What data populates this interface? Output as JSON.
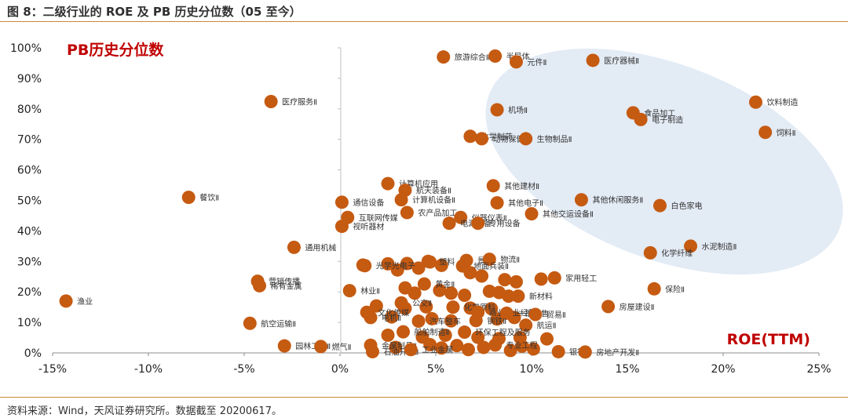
{
  "figure_title": "图 8：二级行业的 ROE 及 PB 历史分位数（05 至今）",
  "source_note": "资料来源：Wind，天风证券研究所。数据截至 20200617。",
  "colors": {
    "point": "#c55a11",
    "ellipse": "#dce6f2",
    "accent_text": "#c00000",
    "rule": "#c9883c"
  },
  "chart_data": {
    "type": "scatter",
    "title": "",
    "ylabel": "PB历史分位数",
    "xlabel": "ROE(TTM)",
    "xlim": [
      -0.15,
      0.25
    ],
    "ylim": [
      0,
      1.0
    ],
    "x_ticks": [
      "-15%",
      "-10%",
      "-5%",
      "0%",
      "5%",
      "10%",
      "15%",
      "20%",
      "25%"
    ],
    "y_ticks": [
      "0%",
      "10%",
      "20%",
      "30%",
      "40%",
      "50%",
      "60%",
      "70%",
      "80%",
      "90%",
      "100%"
    ],
    "grid": false,
    "points": [
      {
        "name": "旅游综合Ⅱ",
        "x": 0.054,
        "y": 0.97
      },
      {
        "name": "半导体",
        "x": 0.081,
        "y": 0.973
      },
      {
        "name": "元件Ⅱ",
        "x": 0.092,
        "y": 0.954
      },
      {
        "name": "医疗器械Ⅱ",
        "x": 0.132,
        "y": 0.959
      },
      {
        "name": "医疗服务Ⅱ",
        "x": -0.036,
        "y": 0.824
      },
      {
        "name": "机场Ⅱ",
        "x": 0.082,
        "y": 0.797
      },
      {
        "name": "饮料制造",
        "x": 0.217,
        "y": 0.822
      },
      {
        "name": "食品加工",
        "x": 0.153,
        "y": 0.787
      },
      {
        "name": "电子制造",
        "x": 0.157,
        "y": 0.765
      },
      {
        "name": "饲料Ⅱ",
        "x": 0.222,
        "y": 0.723
      },
      {
        "name": "化学制药",
        "x": 0.068,
        "y": 0.71
      },
      {
        "name": "动物保健Ⅱ",
        "x": 0.074,
        "y": 0.702
      },
      {
        "name": "生物制品Ⅱ",
        "x": 0.097,
        "y": 0.702
      },
      {
        "name": "计算机应用",
        "x": 0.025,
        "y": 0.555
      },
      {
        "name": "航天装备Ⅱ",
        "x": 0.034,
        "y": 0.533
      },
      {
        "name": "其他建材Ⅱ",
        "x": 0.08,
        "y": 0.548
      },
      {
        "name": "餐饮Ⅱ",
        "x": -0.079,
        "y": 0.51
      },
      {
        "name": "通信设备",
        "x": 0.001,
        "y": 0.494
      },
      {
        "name": "计算机设备Ⅱ",
        "x": 0.032,
        "y": 0.502
      },
      {
        "name": "其他电子Ⅱ",
        "x": 0.082,
        "y": 0.492
      },
      {
        "name": "其他休闲服务Ⅱ",
        "x": 0.126,
        "y": 0.502
      },
      {
        "name": "白色家电",
        "x": 0.167,
        "y": 0.483
      },
      {
        "name": "互联网传媒",
        "x": 0.004,
        "y": 0.444
      },
      {
        "name": "农产品加工",
        "x": 0.035,
        "y": 0.46
      },
      {
        "name": "仪器仪表Ⅱ",
        "x": 0.063,
        "y": 0.444
      },
      {
        "name": "其他交运设备Ⅱ",
        "x": 0.1,
        "y": 0.456
      },
      {
        "name": "视听器材",
        "x": 0.001,
        "y": 0.415
      },
      {
        "name": "电源设备",
        "x": 0.057,
        "y": 0.425
      },
      {
        "name": "专用设备",
        "x": 0.072,
        "y": 0.425
      },
      {
        "name": "通用机械",
        "x": -0.024,
        "y": 0.346
      },
      {
        "name": "水泥制造Ⅱ",
        "x": 0.183,
        "y": 0.35
      },
      {
        "name": "化学纤维",
        "x": 0.162,
        "y": 0.328
      },
      {
        "name": "塑料",
        "x": 0.046,
        "y": 0.3
      },
      {
        "name": "景点",
        "x": 0.066,
        "y": 0.303
      },
      {
        "name": "物流Ⅱ",
        "x": 0.078,
        "y": 0.307
      },
      {
        "name": "光学光电子",
        "x": 0.013,
        "y": 0.286
      },
      {
        "name": "地面兵装Ⅱ",
        "x": 0.064,
        "y": 0.285
      },
      {
        "name": "营销传播",
        "x": -0.043,
        "y": 0.235
      },
      {
        "name": "稀有金属",
        "x": -0.042,
        "y": 0.22
      },
      {
        "name": "家用轻工",
        "x": 0.112,
        "y": 0.246
      },
      {
        "name": "保险Ⅱ",
        "x": 0.164,
        "y": 0.21
      },
      {
        "name": "黄金Ⅱ",
        "x": 0.044,
        "y": 0.226
      },
      {
        "name": "林业Ⅱ",
        "x": 0.005,
        "y": 0.204
      },
      {
        "name": "新材料",
        "x": 0.093,
        "y": 0.186
      },
      {
        "name": "渔业",
        "x": -0.143,
        "y": 0.17
      },
      {
        "name": "房屋建设Ⅱ",
        "x": 0.14,
        "y": 0.152
      },
      {
        "name": "公交Ⅱ",
        "x": 0.032,
        "y": 0.164
      },
      {
        "name": "化学原料",
        "x": 0.059,
        "y": 0.15
      },
      {
        "name": "文化传媒",
        "x": 0.014,
        "y": 0.133
      },
      {
        "name": "商业物业经营",
        "x": 0.072,
        "y": 0.133
      },
      {
        "name": "一般零售",
        "x": 0.087,
        "y": 0.13
      },
      {
        "name": "贸易Ⅱ",
        "x": 0.102,
        "y": 0.126
      },
      {
        "name": "电机Ⅱ",
        "x": 0.016,
        "y": 0.116
      },
      {
        "name": "航空运输Ⅱ",
        "x": -0.047,
        "y": 0.097
      },
      {
        "name": "汽车整车",
        "x": 0.041,
        "y": 0.104
      },
      {
        "name": "钢铁Ⅱ",
        "x": 0.071,
        "y": 0.106
      },
      {
        "name": "航运Ⅱ",
        "x": 0.097,
        "y": 0.091
      },
      {
        "name": "船舶制造Ⅱ",
        "x": 0.033,
        "y": 0.069
      },
      {
        "name": "环保工程及服务",
        "x": 0.065,
        "y": 0.068
      },
      {
        "name": "园林工程Ⅱ",
        "x": -0.029,
        "y": 0.023
      },
      {
        "name": "燃气Ⅱ",
        "x": -0.01,
        "y": 0.021
      },
      {
        "name": "金属制品Ⅱ",
        "x": 0.016,
        "y": 0.025
      },
      {
        "name": "专业工程",
        "x": 0.081,
        "y": 0.026
      },
      {
        "name": "石油开采Ⅱ",
        "x": 0.017,
        "y": 0.004
      },
      {
        "name": "工业金属",
        "x": 0.037,
        "y": 0.011
      },
      {
        "name": "银行Ⅱ",
        "x": 0.114,
        "y": 0.004
      },
      {
        "name": "房地产开发Ⅱ",
        "x": 0.128,
        "y": 0.003
      }
    ],
    "extra_points": [
      {
        "x": 0.012,
        "y": 0.288
      },
      {
        "x": 0.025,
        "y": 0.292
      },
      {
        "x": 0.03,
        "y": 0.272
      },
      {
        "x": 0.035,
        "y": 0.293
      },
      {
        "x": 0.041,
        "y": 0.278
      },
      {
        "x": 0.047,
        "y": 0.298
      },
      {
        "x": 0.053,
        "y": 0.287
      },
      {
        "x": 0.068,
        "y": 0.263
      },
      {
        "x": 0.074,
        "y": 0.252
      },
      {
        "x": 0.086,
        "y": 0.24
      },
      {
        "x": 0.092,
        "y": 0.233
      },
      {
        "x": 0.105,
        "y": 0.242
      },
      {
        "x": 0.034,
        "y": 0.213
      },
      {
        "x": 0.039,
        "y": 0.196
      },
      {
        "x": 0.052,
        "y": 0.205
      },
      {
        "x": 0.058,
        "y": 0.196
      },
      {
        "x": 0.065,
        "y": 0.189
      },
      {
        "x": 0.078,
        "y": 0.202
      },
      {
        "x": 0.083,
        "y": 0.198
      },
      {
        "x": 0.088,
        "y": 0.186
      },
      {
        "x": 0.019,
        "y": 0.154
      },
      {
        "x": 0.034,
        "y": 0.146
      },
      {
        "x": 0.045,
        "y": 0.151
      },
      {
        "x": 0.068,
        "y": 0.147
      },
      {
        "x": 0.079,
        "y": 0.145
      },
      {
        "x": 0.027,
        "y": 0.118
      },
      {
        "x": 0.048,
        "y": 0.112
      },
      {
        "x": 0.058,
        "y": 0.105
      },
      {
        "x": 0.082,
        "y": 0.111
      },
      {
        "x": 0.091,
        "y": 0.116
      },
      {
        "x": 0.025,
        "y": 0.058
      },
      {
        "x": 0.043,
        "y": 0.052
      },
      {
        "x": 0.055,
        "y": 0.058
      },
      {
        "x": 0.072,
        "y": 0.051
      },
      {
        "x": 0.083,
        "y": 0.047
      },
      {
        "x": 0.094,
        "y": 0.05
      },
      {
        "x": 0.108,
        "y": 0.046
      },
      {
        "x": 0.029,
        "y": 0.018
      },
      {
        "x": 0.047,
        "y": 0.027
      },
      {
        "x": 0.053,
        "y": 0.016
      },
      {
        "x": 0.061,
        "y": 0.024
      },
      {
        "x": 0.067,
        "y": 0.011
      },
      {
        "x": 0.075,
        "y": 0.018
      },
      {
        "x": 0.089,
        "y": 0.008
      },
      {
        "x": 0.095,
        "y": 0.022
      },
      {
        "x": 0.101,
        "y": 0.013
      }
    ]
  }
}
